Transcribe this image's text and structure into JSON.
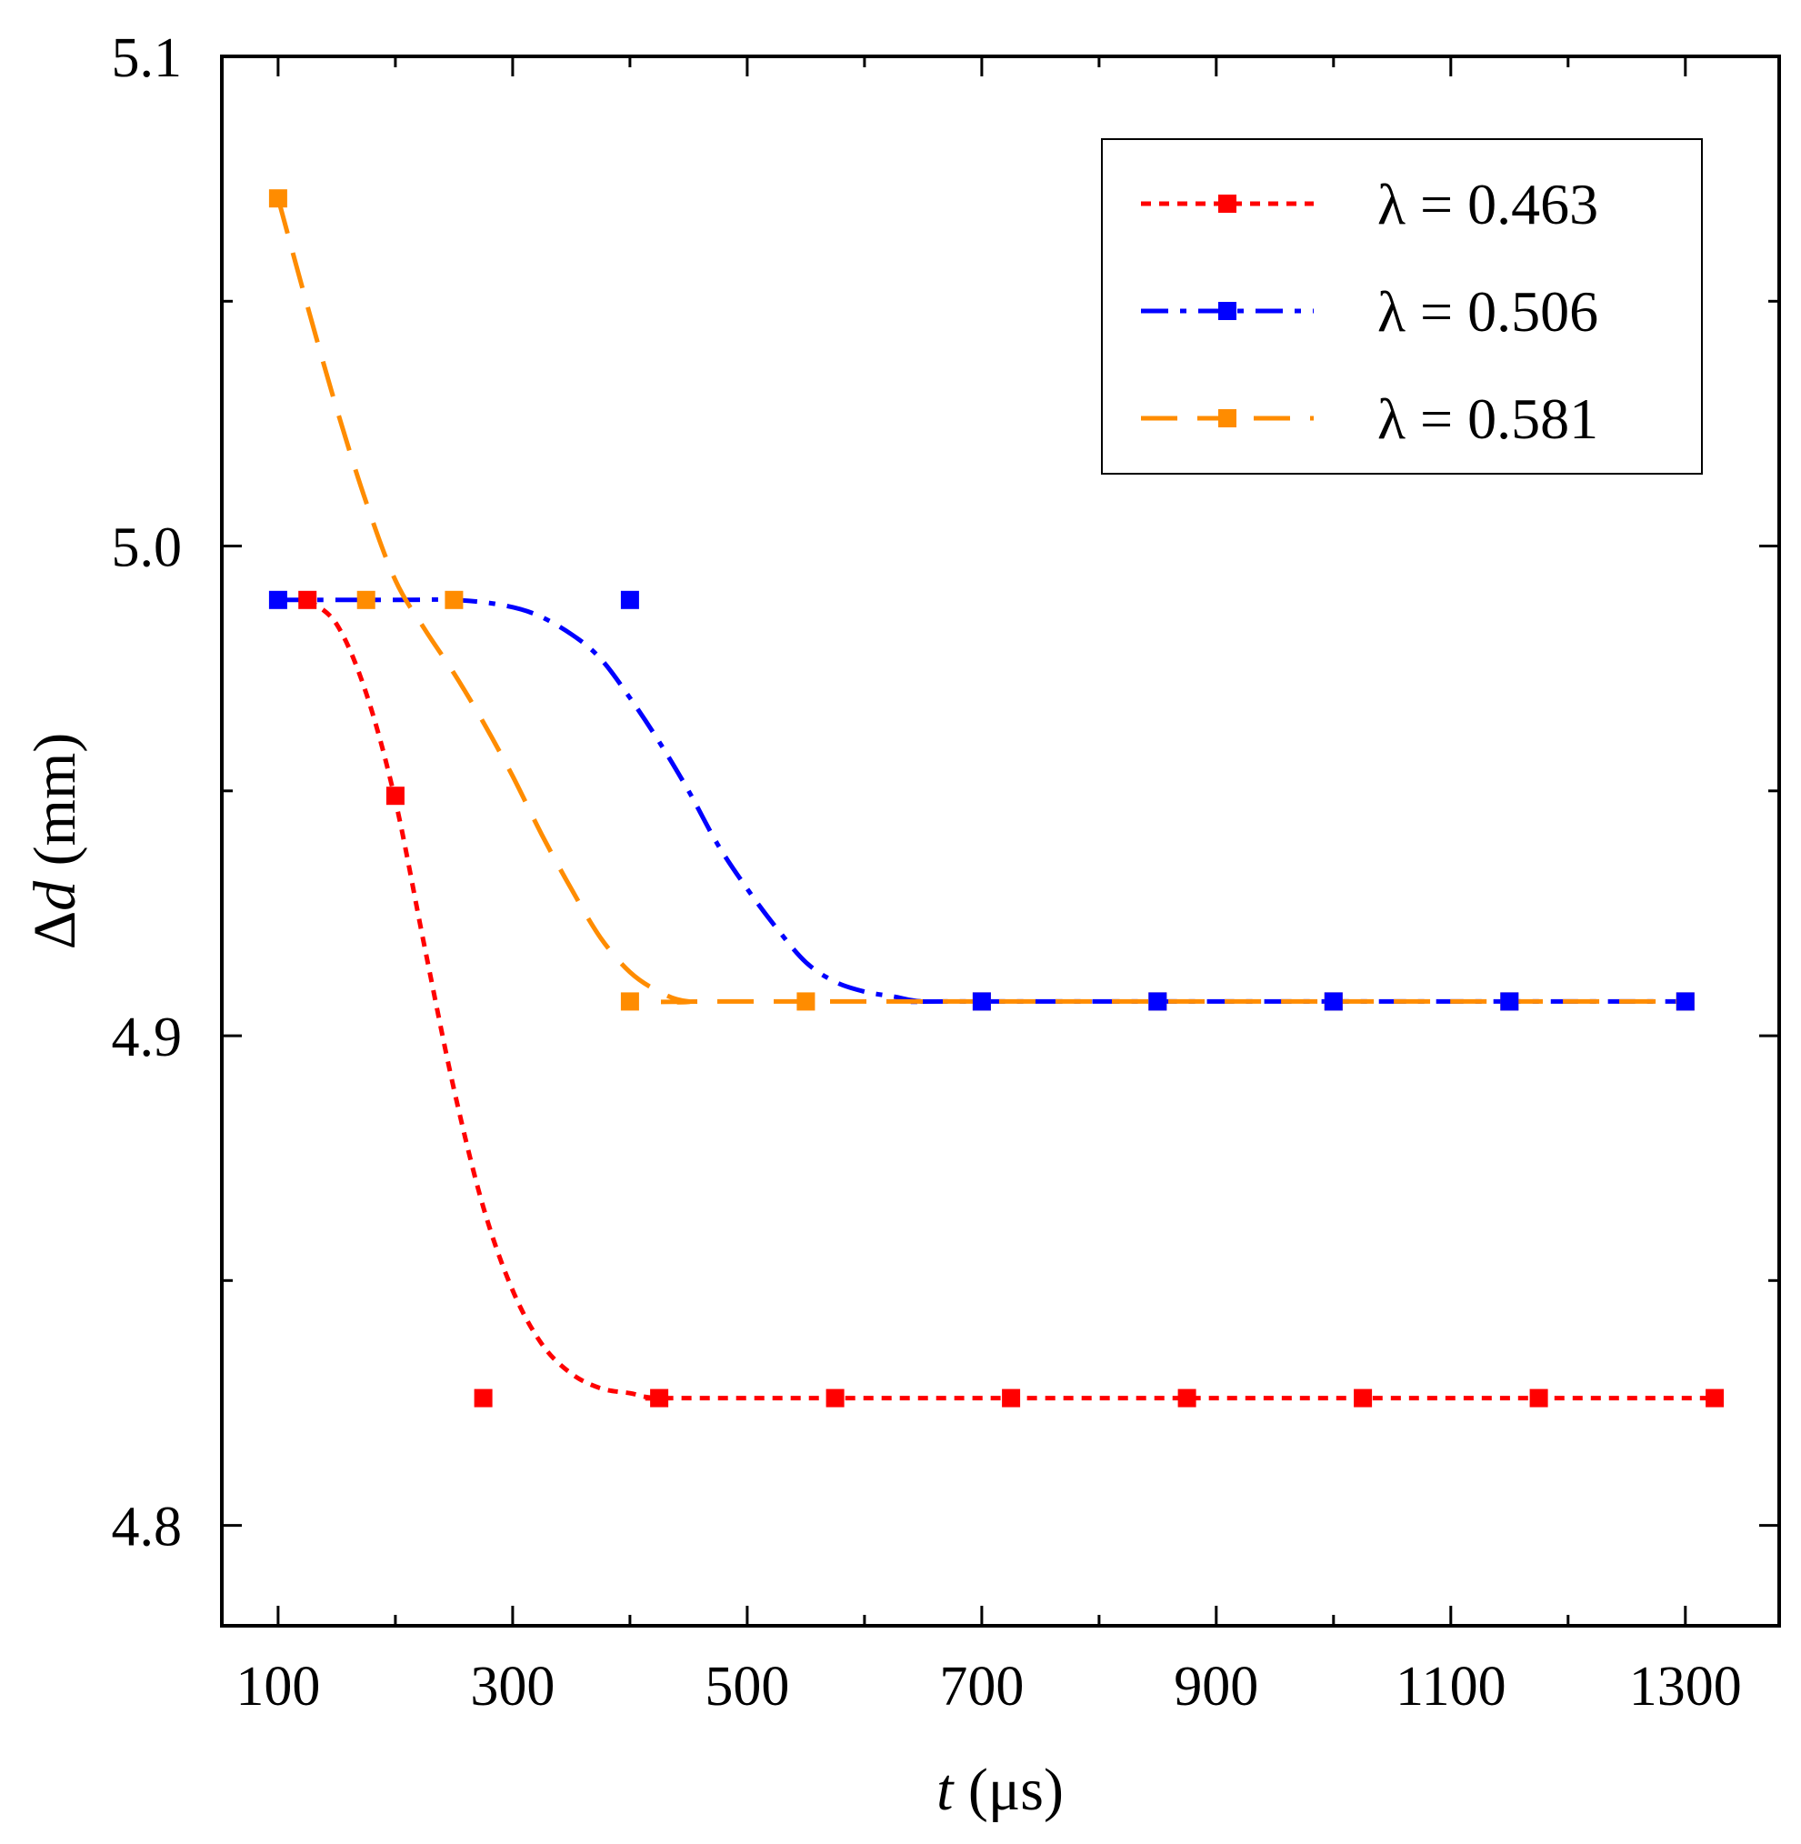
{
  "chart_data": {
    "type": "line",
    "title": "",
    "xlabel": {
      "italic": "t",
      "rest": " (μs)"
    },
    "ylabel": {
      "prefix": "Δ",
      "italic": "d",
      "rest": " (mm)"
    },
    "xlim": [
      52,
      1380
    ],
    "ylim": [
      4.7795,
      5.1
    ],
    "xticks": [
      100,
      300,
      500,
      700,
      900,
      1100,
      1300
    ],
    "xtick_labels": [
      "100",
      "300",
      "500",
      "700",
      "900",
      "1100",
      "1300"
    ],
    "yticks": [
      4.8,
      4.9,
      5.0,
      5.1
    ],
    "ytick_labels": [
      "4.8",
      "4.9",
      "5.0",
      "5.1"
    ],
    "yminor": [
      4.85,
      4.95,
      5.05
    ],
    "grid": false,
    "legend_position": "top-right",
    "series": [
      {
        "name": "λ = 0.463",
        "color": "#ff0000",
        "dash": "dotted",
        "points": [
          [
            125,
            4.989
          ],
          [
            200,
            4.949
          ],
          [
            275,
            4.826
          ],
          [
            425,
            4.826
          ],
          [
            575,
            4.826
          ],
          [
            725,
            4.826
          ],
          [
            875,
            4.826
          ],
          [
            1025,
            4.826
          ],
          [
            1175,
            4.826
          ],
          [
            1325,
            4.826
          ]
        ],
        "curve": [
          [
            125,
            4.989
          ],
          [
            150,
            4.984
          ],
          [
            175,
            4.97
          ],
          [
            200,
            4.948
          ],
          [
            225,
            4.918
          ],
          [
            250,
            4.889
          ],
          [
            275,
            4.865
          ],
          [
            300,
            4.848
          ],
          [
            325,
            4.837
          ],
          [
            350,
            4.831
          ],
          [
            375,
            4.828
          ],
          [
            400,
            4.827
          ],
          [
            425,
            4.826
          ],
          [
            500,
            4.826
          ],
          [
            1325,
            4.826
          ]
        ]
      },
      {
        "name": "λ = 0.506",
        "color": "#0000ff",
        "dash": "dash-dot",
        "points": [
          [
            100,
            4.989
          ],
          [
            400,
            4.989
          ],
          [
            700,
            4.907
          ],
          [
            850,
            4.907
          ],
          [
            1000,
            4.907
          ],
          [
            1150,
            4.907
          ],
          [
            1300,
            4.907
          ]
        ],
        "curve": [
          [
            100,
            4.989
          ],
          [
            200,
            4.989
          ],
          [
            250,
            4.989
          ],
          [
            290,
            4.988
          ],
          [
            320,
            4.986
          ],
          [
            350,
            4.982
          ],
          [
            375,
            4.977
          ],
          [
            400,
            4.969
          ],
          [
            425,
            4.96
          ],
          [
            450,
            4.95
          ],
          [
            475,
            4.939
          ],
          [
            500,
            4.93
          ],
          [
            525,
            4.922
          ],
          [
            550,
            4.915
          ],
          [
            575,
            4.911
          ],
          [
            600,
            4.909
          ],
          [
            625,
            4.908
          ],
          [
            650,
            4.907
          ],
          [
            700,
            4.907
          ],
          [
            1300,
            4.907
          ]
        ]
      },
      {
        "name": "λ = 0.581",
        "color": "#ff8c00",
        "dash": "dashed",
        "points": [
          [
            100,
            5.071
          ],
          [
            175,
            4.989
          ],
          [
            250,
            4.989
          ],
          [
            400,
            4.907
          ],
          [
            550,
            4.907
          ],
          [
            700,
            4.907
          ],
          [
            850,
            4.907
          ],
          [
            1000,
            4.907
          ],
          [
            1150,
            4.907
          ],
          [
            1300,
            4.907
          ]
        ],
        "curve": [
          [
            100,
            5.071
          ],
          [
            125,
            5.049
          ],
          [
            150,
            5.028
          ],
          [
            175,
            5.009
          ],
          [
            200,
            4.993
          ],
          [
            225,
            4.983
          ],
          [
            250,
            4.974
          ],
          [
            275,
            4.964
          ],
          [
            300,
            4.953
          ],
          [
            325,
            4.941
          ],
          [
            350,
            4.93
          ],
          [
            375,
            4.92
          ],
          [
            400,
            4.913
          ],
          [
            425,
            4.909
          ],
          [
            450,
            4.907
          ],
          [
            500,
            4.907
          ],
          [
            1300,
            4.907
          ]
        ]
      }
    ]
  }
}
